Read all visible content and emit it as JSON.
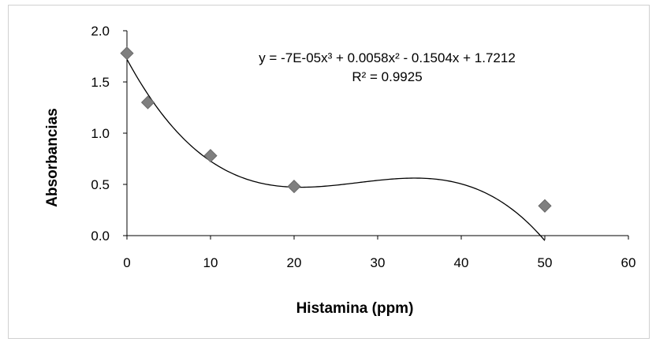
{
  "chart_data": {
    "type": "scatter",
    "title": "",
    "xlabel": "Histamina (ppm)",
    "ylabel": "Absorbancias",
    "xlim": [
      0,
      60
    ],
    "ylim": [
      0,
      2
    ],
    "x_ticks": [
      0,
      10,
      20,
      30,
      40,
      50,
      60
    ],
    "y_ticks": [
      0.0,
      0.5,
      1.0,
      1.5,
      2.0
    ],
    "x_tick_labels": [
      "0",
      "10",
      "20",
      "30",
      "40",
      "50",
      "60"
    ],
    "y_tick_labels": [
      "0.0",
      "0.5",
      "1.0",
      "1.5",
      "2.0"
    ],
    "grid": false,
    "series": [
      {
        "marker": "diamond",
        "color": "#7f7f7f",
        "x": [
          0,
          2.5,
          10,
          20,
          50
        ],
        "y": [
          1.78,
          1.3,
          0.78,
          0.48,
          0.29
        ]
      }
    ],
    "trendline": {
      "type": "polynomial",
      "order": 3,
      "coefficients": [
        -7e-05,
        0.0058,
        -0.1504,
        1.7212
      ],
      "color": "#000000"
    },
    "annotations": {
      "equation": "y = -7E-05x³ + 0.0058x² - 0.1504x + 1.7212",
      "r_squared": "R² = 0.9925"
    }
  }
}
